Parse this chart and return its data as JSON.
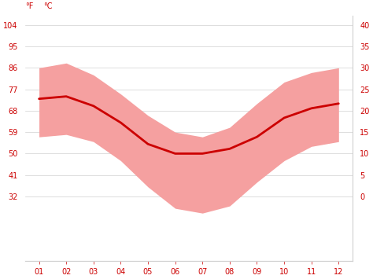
{
  "months": [
    1,
    2,
    3,
    4,
    5,
    6,
    7,
    8,
    9,
    10,
    11,
    12
  ],
  "avg_temp_f": [
    73,
    74,
    70,
    63,
    54,
    50,
    50,
    52,
    57,
    65,
    69,
    71
  ],
  "max_temp_f": [
    86,
    88,
    83,
    75,
    66,
    59,
    57,
    61,
    71,
    80,
    84,
    86
  ],
  "min_temp_f": [
    57,
    58,
    55,
    47,
    36,
    27,
    25,
    28,
    38,
    47,
    53,
    55
  ],
  "ylim_f": [
    5,
    108
  ],
  "yticks_f_left": [
    32,
    41,
    50,
    59,
    68,
    77,
    86,
    95,
    104
  ],
  "ytick_labels_f": [
    "32",
    "41",
    "50",
    "59",
    "68",
    "77",
    "86",
    "95",
    "104"
  ],
  "yticks_c_right": [
    0,
    5,
    10,
    15,
    20,
    25,
    30,
    35,
    40
  ],
  "ytick_labels_c": [
    "0",
    "5",
    "10",
    "15",
    "20",
    "25",
    "30",
    "35",
    "40"
  ],
  "line_color": "#cc0000",
  "band_color": "#f5a0a0",
  "label_color": "#cc0000",
  "background_color": "#ffffff",
  "grid_color": "#d0d0d0",
  "axis_label_f": "°F",
  "axis_label_c": "°C",
  "x_labels": [
    "01",
    "02",
    "03",
    "04",
    "05",
    "06",
    "07",
    "08",
    "09",
    "10",
    "11",
    "12"
  ]
}
